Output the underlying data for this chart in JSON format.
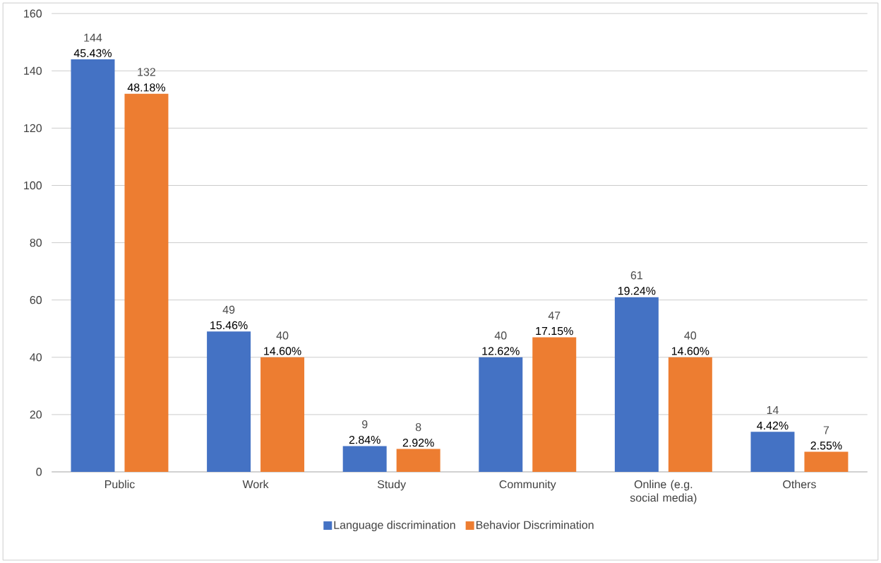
{
  "chart_data": {
    "type": "bar",
    "categories": [
      "Public",
      "Work",
      "Study",
      "Community",
      "Online (e.g. social media)",
      "Others"
    ],
    "series": [
      {
        "name": "Language discrimination",
        "color": "#4472c4",
        "values": [
          144,
          49,
          9,
          40,
          61,
          14
        ],
        "value_labels": [
          "144",
          "49",
          "9",
          "40",
          "61",
          "14"
        ]
      },
      {
        "name": "Behavior Discrimination",
        "color": "#ed7d31",
        "values": [
          132,
          40,
          8,
          47,
          40,
          7
        ],
        "value_labels": [
          "132",
          "40",
          "8",
          "47",
          "40",
          "7"
        ]
      }
    ],
    "annotations": [
      "45.43%",
      "15.46%",
      "2.84%",
      "12.62%",
      "19.24%",
      "4.42%",
      "48.18%",
      "14.60%",
      "2.92%",
      "17.15%",
      "14.60%",
      "2.55%"
    ],
    "data_labels": true,
    "ylim": [
      0,
      160
    ],
    "yticks": [
      0,
      20,
      40,
      60,
      80,
      100,
      120,
      140,
      160
    ],
    "grid": "y",
    "legend": "bottom"
  }
}
